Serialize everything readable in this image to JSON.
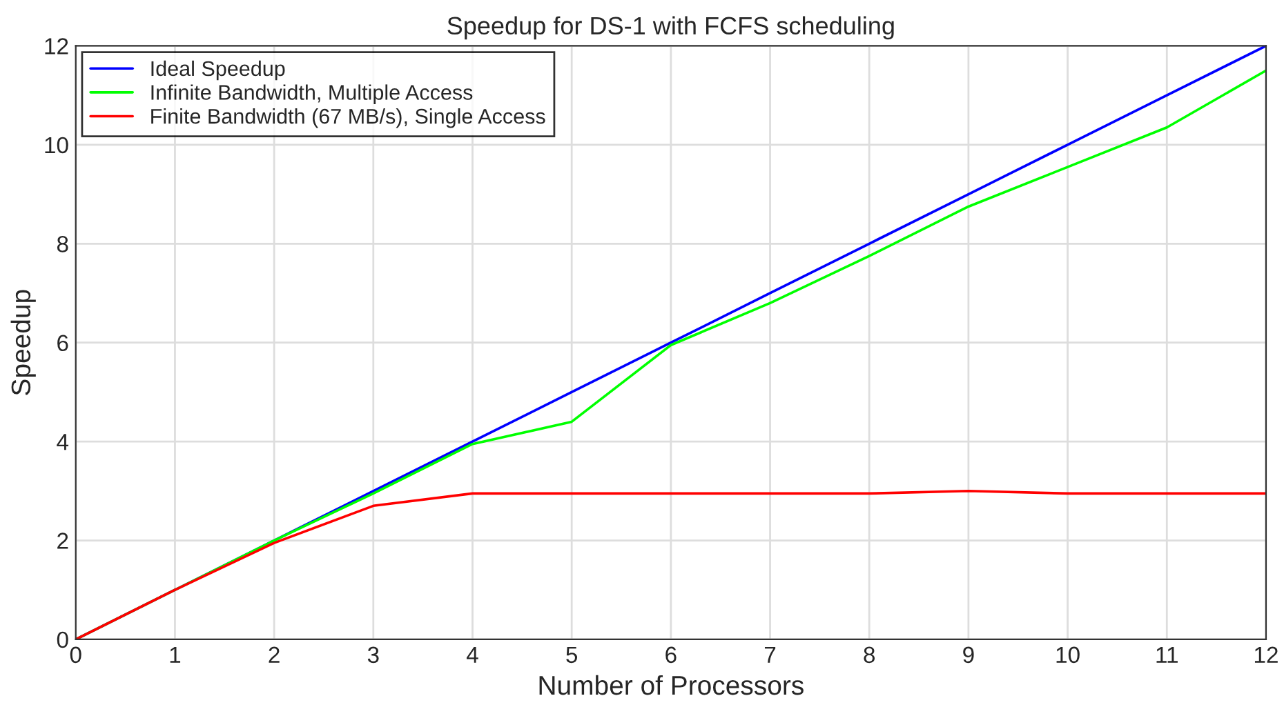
{
  "chart_data": {
    "type": "line",
    "title": "Speedup for DS-1 with FCFS scheduling",
    "xlabel": "Number of Processors",
    "ylabel": "Speedup",
    "x": [
      0,
      1,
      2,
      3,
      4,
      5,
      6,
      7,
      8,
      9,
      10,
      11,
      12
    ],
    "series": [
      {
        "name": "Ideal Speedup",
        "color": "#0000ff",
        "values": [
          0,
          1,
          2,
          3,
          4,
          5,
          6,
          7,
          8,
          9,
          10,
          11,
          12
        ]
      },
      {
        "name": "Infinite Bandwidth, Multiple Access",
        "color": "#00ff00",
        "values": [
          0,
          1,
          2,
          2.95,
          3.95,
          4.4,
          5.95,
          6.8,
          7.75,
          8.75,
          9.55,
          10.35,
          11.5
        ]
      },
      {
        "name": "Finite Bandwidth (67 MB/s), Single Access",
        "color": "#ff0000",
        "values": [
          0,
          1,
          1.95,
          2.7,
          2.95,
          2.95,
          2.95,
          2.95,
          2.95,
          3,
          2.95,
          2.95,
          2.95
        ]
      }
    ],
    "xlim": [
      0,
      12
    ],
    "ylim": [
      0,
      12
    ],
    "xticks": [
      0,
      1,
      2,
      3,
      4,
      5,
      6,
      7,
      8,
      9,
      10,
      11,
      12
    ],
    "yticks": [
      0,
      2,
      4,
      6,
      8,
      10,
      12
    ],
    "grid": true,
    "legend": "top left",
    "marker": "none",
    "line_style": "solid"
  }
}
